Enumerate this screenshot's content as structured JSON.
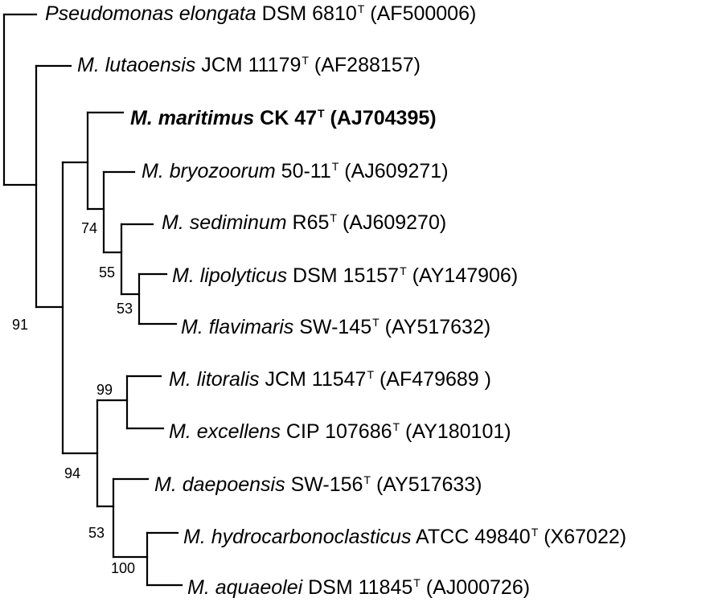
{
  "tree": {
    "leaves": [
      {
        "id": "pseudomonas",
        "genus": "Pseudomonas elongata",
        "strain": "DSM 6810",
        "type_mark": "T",
        "accession": "(AF500006)",
        "bold": false
      },
      {
        "id": "lutaoensis",
        "genus": "M. lutaoensis",
        "strain": "JCM 11179",
        "type_mark": "T",
        "accession": "(AF288157)",
        "bold": false
      },
      {
        "id": "maritimus",
        "genus": "M. maritimus",
        "strain": "CK 47",
        "type_mark": "T",
        "accession": "(AJ704395)",
        "bold": true
      },
      {
        "id": "bryozoorum",
        "genus": "M. bryozoorum",
        "strain": "50-11",
        "type_mark": "T",
        "accession": "(AJ609271)",
        "bold": false
      },
      {
        "id": "sediminum",
        "genus": "M. sediminum",
        "strain": "R65",
        "type_mark": "T",
        "accession": "(AJ609270)",
        "bold": false
      },
      {
        "id": "lipolyticus",
        "genus": "M. lipolyticus",
        "strain": "DSM 15157",
        "type_mark": "T",
        "accession": "(AY147906)",
        "bold": false
      },
      {
        "id": "flavimaris",
        "genus": "M. flavimaris",
        "strain": "SW-145",
        "type_mark": "T",
        "accession": "(AY517632)",
        "bold": false
      },
      {
        "id": "litoralis",
        "genus": "M. litoralis",
        "strain": "JCM 11547",
        "type_mark": "T",
        "accession": "(AF479689 )",
        "bold": false
      },
      {
        "id": "excellens",
        "genus": "M. excellens",
        "strain": "CIP 107686",
        "type_mark": "T",
        "accession": "(AY180101)",
        "bold": false
      },
      {
        "id": "daepoensis",
        "genus": "M. daepoensis",
        "strain": "SW-156",
        "type_mark": "T",
        "accession": "(AY517633)",
        "bold": false
      },
      {
        "id": "hydrocarbonoclasticus",
        "genus": "M. hydrocarbonoclasticus",
        "strain": "ATCC 49840",
        "type_mark": "T",
        "accession": "(X67022)",
        "bold": false
      },
      {
        "id": "aquaeolei",
        "genus": "M. aquaeolei",
        "strain": "DSM 11845",
        "type_mark": "T",
        "accession": "(AJ000726)",
        "bold": false
      }
    ],
    "bootstrap": [
      {
        "id": "b74",
        "value": "74"
      },
      {
        "id": "b55",
        "value": "55"
      },
      {
        "id": "b53a",
        "value": "53"
      },
      {
        "id": "b91",
        "value": "91"
      },
      {
        "id": "b99",
        "value": "99"
      },
      {
        "id": "b94",
        "value": "94"
      },
      {
        "id": "b53b",
        "value": "53"
      },
      {
        "id": "b100",
        "value": "100"
      }
    ]
  }
}
